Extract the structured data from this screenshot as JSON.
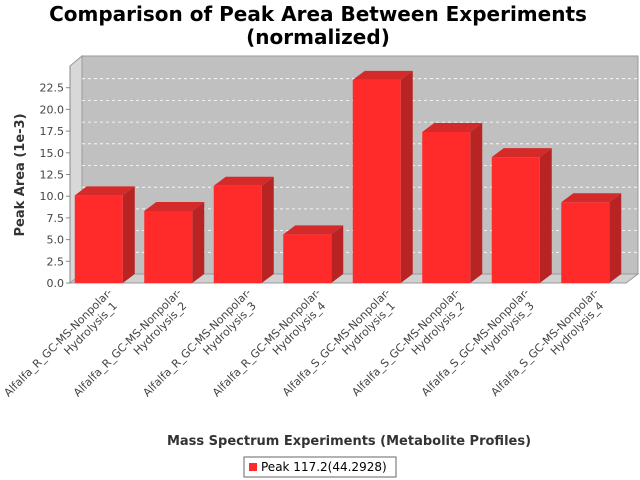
{
  "chart_data": {
    "type": "bar",
    "title_lines": [
      "Comparison of Peak Area Between Experiments",
      "(normalized)"
    ],
    "xlabel": "Mass Spectrum Experiments (Metabolite Profiles)",
    "ylabel": "Peak Area (1e-3)",
    "ylim": [
      0,
      25
    ],
    "yticks": [
      "0.0",
      "2.5",
      "5.0",
      "7.5",
      "10.0",
      "12.5",
      "15.0",
      "17.5",
      "20.0",
      "22.5"
    ],
    "categories": [
      [
        "Alfalfa_R_GC-MS-Nonpolar-",
        "Hydrolysis_1"
      ],
      [
        "Alfalfa_R_GC-MS-Nonpolar-",
        "Hydrolysis_2"
      ],
      [
        "Alfalfa_R_GC-MS-Nonpolar-",
        "Hydrolysis_3"
      ],
      [
        "Alfalfa_R_GC-MS-Nonpolar-",
        "Hydrolysis_4"
      ],
      [
        "Alfalfa_S_GC-MS-Nonpolar-",
        "Hydrolysis_1"
      ],
      [
        "Alfalfa_S_GC-MS-Nonpolar-",
        "Hydrolysis_2"
      ],
      [
        "Alfalfa_S_GC-MS-Nonpolar-",
        "Hydrolysis_3"
      ],
      [
        "Alfalfa_S_GC-MS-Nonpolar-",
        "Hydrolysis_4"
      ]
    ],
    "series": [
      {
        "name": "Peak 117.2(44.2928)",
        "color": "#ff2a2a",
        "values": [
          10.1,
          8.3,
          11.2,
          5.6,
          23.4,
          17.4,
          14.5,
          9.3
        ]
      }
    ],
    "grid": true,
    "legend_position": "bottom"
  }
}
